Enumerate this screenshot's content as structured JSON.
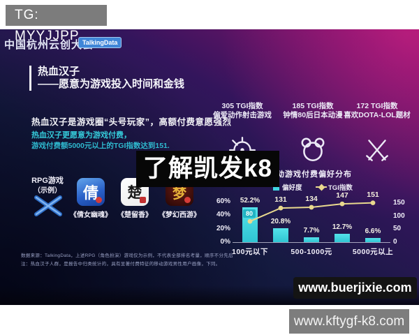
{
  "watermarks": {
    "tg_label": "TG: MYYJJPP",
    "center_label": "了解凯发k8",
    "site_dark": "www.buerjixie.com",
    "site_gray": "www.kftygf-k8.com"
  },
  "header": {
    "conference_title": "中国杭州云创大会",
    "brand_badge": "TalkingData"
  },
  "slide_title": {
    "main": "热血汉子",
    "sub": "——愿意为游戏投入时间和金钱"
  },
  "intro": {
    "line1": "热血汉子是游戏圈“头号玩家”，高额付费意愿强烈",
    "line2": "热血汉子更愿意为游戏付费，",
    "line3": "游戏付费额5000元以上的TGI指数达到151."
  },
  "stats": [
    {
      "value": "305 TGI指数",
      "desc": "偏爱动作射击游戏",
      "icon": "crosshair-target"
    },
    {
      "value": "185 TGI指数",
      "desc": "钟情80后日本动漫",
      "icon": "bear-head"
    },
    {
      "value": "172 TGI指数",
      "desc": "喜欢DOTA-LOL题材",
      "icon": "crossed-swords"
    }
  ],
  "rpg_section": {
    "label_line1": "RPG游戏",
    "label_line2": "（示例）",
    "games": [
      {
        "name": "《倩女幽魂》",
        "glyph": "倩"
      },
      {
        "name": "《楚留香》",
        "glyph": "楚"
      },
      {
        "name": "《梦幻西游》",
        "glyph": "梦"
      }
    ]
  },
  "chart_data": {
    "type": "bar",
    "title": "移动游戏付费偏好分布",
    "categories": [
      "100元以下",
      "",
      "500-1000元",
      "",
      "5000元以上"
    ],
    "series": [
      {
        "name": "偏好度",
        "type": "bar",
        "unit": "%",
        "values": [
          52.2,
          20.8,
          7.7,
          12.7,
          6.6
        ],
        "color": "#41d6e2",
        "axis": "left"
      },
      {
        "name": "TGI指数",
        "type": "line",
        "values": [
          80,
          131,
          134,
          147,
          151
        ],
        "color": "#e9d98e",
        "axis": "right"
      }
    ],
    "bar_labels": [
      "52.2%",
      "20.8%",
      "7.7%",
      "12.7%",
      "6.6%"
    ],
    "line_labels": [
      "80",
      "131",
      "134",
      "147",
      "151"
    ],
    "left_axis": {
      "ticks": [
        "0%",
        "20%",
        "40%",
        "60%"
      ],
      "range": [
        0,
        60
      ]
    },
    "right_axis": {
      "ticks": [
        "0",
        "50",
        "100",
        "150"
      ],
      "range": [
        0,
        150
      ]
    },
    "legend_position": "top",
    "grid": false
  },
  "footnote": {
    "line1": "数据来源：TalkingData，上述RPG（角色扮演）游戏仅为示例，不代表全部排名考量，顺序不分先后",
    "line2": "注：热血汉子人群，是报告中归类统计的，具有显著付费特征的移动游戏男性用户画像，下同。"
  },
  "colors": {
    "accent_cyan": "#41d6e2",
    "accent_gold": "#e9d98e",
    "badge_blue": "#3f86d8",
    "icon_blue": "#4a8fe0",
    "seal_red": "#d63c38",
    "watermark_gray": "#7d7d7d",
    "watermark_black": "#070707"
  }
}
